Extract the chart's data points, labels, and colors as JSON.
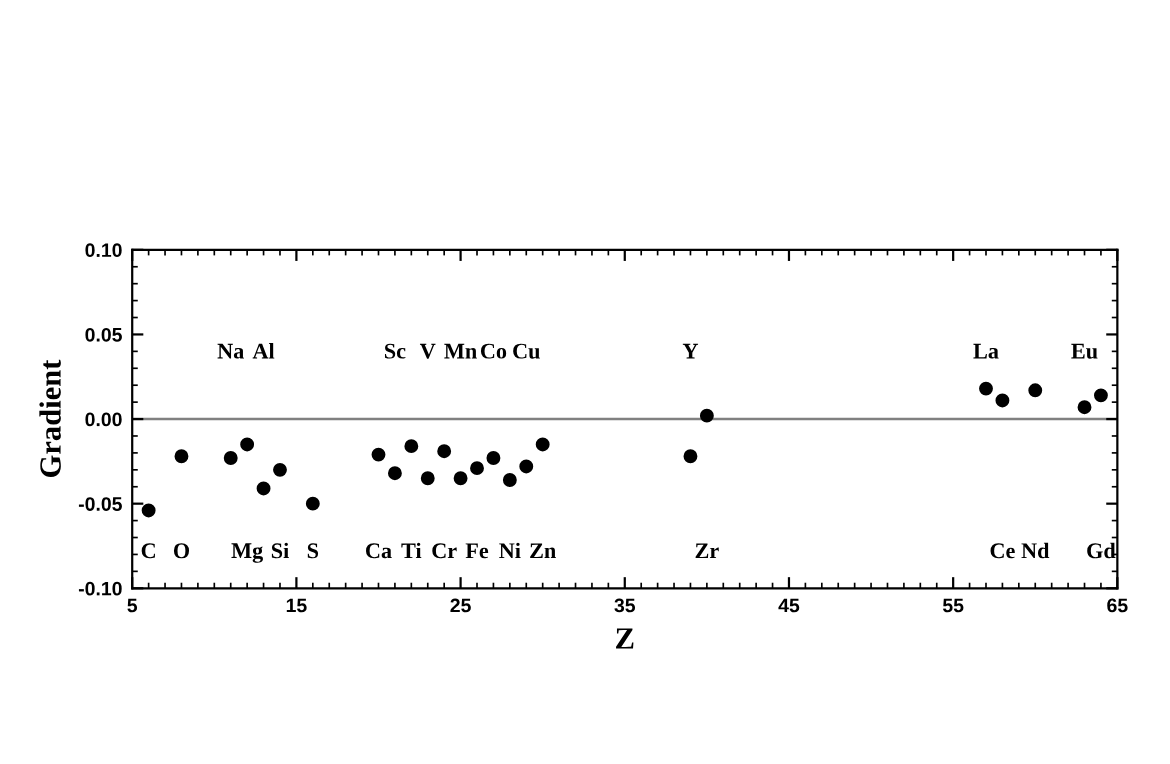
{
  "chart_data": {
    "type": "scatter",
    "xlabel": "Z",
    "ylabel": "Gradient",
    "x": [
      6,
      8,
      11,
      12,
      13,
      14,
      16,
      20,
      21,
      22,
      23,
      24,
      25,
      26,
      27,
      28,
      29,
      30,
      39,
      40,
      57,
      58,
      60,
      63,
      64
    ],
    "series": [
      {
        "color": "#000000",
        "values": [
          -0.054,
          -0.022,
          -0.023,
          -0.015,
          -0.041,
          -0.03,
          -0.05,
          -0.021,
          -0.032,
          -0.016,
          -0.035,
          -0.019,
          -0.035,
          -0.029,
          -0.023,
          -0.036,
          -0.028,
          -0.015,
          -0.022,
          0.002,
          0.018,
          0.011,
          0.017,
          0.007,
          0.014
        ]
      }
    ],
    "marker": "circle",
    "xlim": [
      5,
      65
    ],
    "xticks": [
      5,
      15,
      25,
      35,
      45,
      55,
      65
    ],
    "ylim": [
      -0.1,
      0.1
    ],
    "yticks": [
      {
        "value": -0.1,
        "label": "-0.10"
      },
      {
        "value": -0.05,
        "label": "-0.05"
      },
      {
        "value": 0,
        "label": "0.00"
      },
      {
        "value": 0.05,
        "label": "0.05"
      },
      {
        "value": 0.1,
        "label": "0.10"
      }
    ],
    "ref_lines": [
      {
        "axis": "y",
        "value": 0,
        "color": "#808080"
      }
    ],
    "grid": false,
    "legend": false,
    "annotations": [
      "C",
      "O",
      "Na",
      "Mg",
      "Al",
      "Si",
      "S",
      "Ca",
      "Sc",
      "Ti",
      "V",
      "Cr",
      "Mn",
      "Fe",
      "Co",
      "Ni",
      "Cu",
      "Zn",
      "Y",
      "Zr",
      "La",
      "Ce",
      "Nd",
      "Eu",
      "Gd"
    ]
  }
}
